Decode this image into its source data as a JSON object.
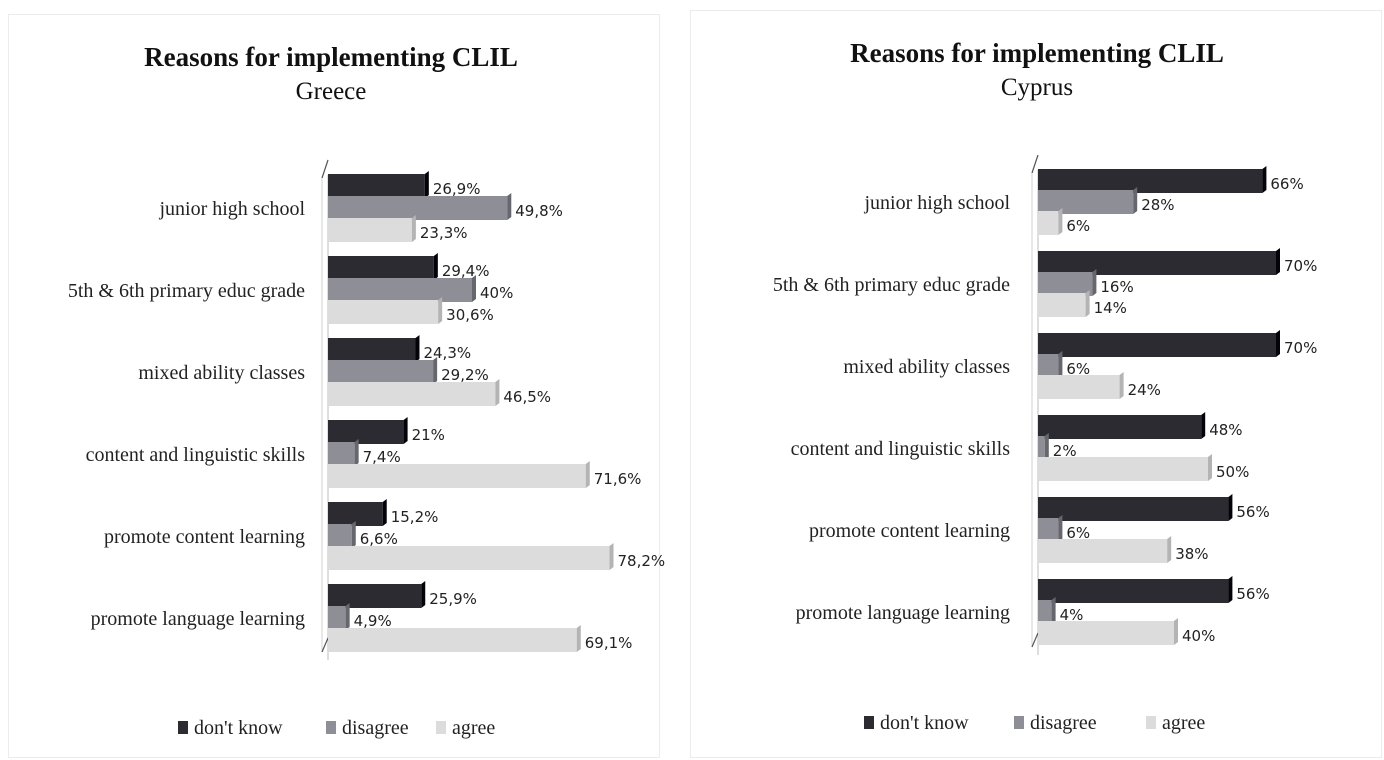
{
  "colors": {
    "dont_know": "#2b2b31",
    "disagree": "#8e8e96",
    "agree": "#dcdcdc"
  },
  "chart_data": [
    {
      "type": "bar",
      "title": "Reasons for implementing CLIL",
      "subtitle": "Greece",
      "orientation": "horizontal",
      "categories": [
        "junior high school",
        "5th & 6th primary educ grade",
        "mixed ability classes",
        "content and linguistic skills",
        "promote content learning",
        "promote language learning"
      ],
      "series": [
        {
          "name": "don't know",
          "values": [
            26.9,
            29.4,
            24.3,
            21,
            15.2,
            25.9
          ],
          "labels": [
            "26,9%",
            "29,4%",
            "24,3%",
            "21%",
            "15,2%",
            "25,9%"
          ]
        },
        {
          "name": "disagree",
          "values": [
            49.8,
            40,
            29.2,
            7.4,
            6.6,
            4.9
          ],
          "labels": [
            "49,8%",
            "40%",
            "29,2%",
            "7,4%",
            "6,6%",
            "4,9%"
          ]
        },
        {
          "name": "agree",
          "values": [
            23.3,
            30.6,
            46.5,
            71.6,
            78.2,
            69.1
          ],
          "labels": [
            "23,3%",
            "30,6%",
            "46,5%",
            "71,6%",
            "78,2%",
            "69,1%"
          ]
        }
      ],
      "legend_position": "bottom",
      "grid": false
    },
    {
      "type": "bar",
      "title": "Reasons for implementing CLIL",
      "subtitle": "Cyprus",
      "orientation": "horizontal",
      "categories": [
        "junior high school",
        "5th & 6th primary educ grade",
        "mixed ability classes",
        "content and linguistic skills",
        "promote content learning",
        "promote language learning"
      ],
      "series": [
        {
          "name": "don't know",
          "values": [
            66,
            70,
            70,
            48,
            56,
            56
          ],
          "labels": [
            "66%",
            "70%",
            "70%",
            "48%",
            "56%",
            "56%"
          ]
        },
        {
          "name": "disagree",
          "values": [
            28,
            16,
            6,
            2,
            6,
            4
          ],
          "labels": [
            "28%",
            "16%",
            "6%",
            "2%",
            "6%",
            "4%"
          ]
        },
        {
          "name": "agree",
          "values": [
            6,
            14,
            24,
            50,
            38,
            40
          ],
          "labels": [
            "6%",
            "14%",
            "24%",
            "50%",
            "38%",
            "40%"
          ]
        }
      ],
      "legend_position": "bottom",
      "grid": false
    }
  ]
}
